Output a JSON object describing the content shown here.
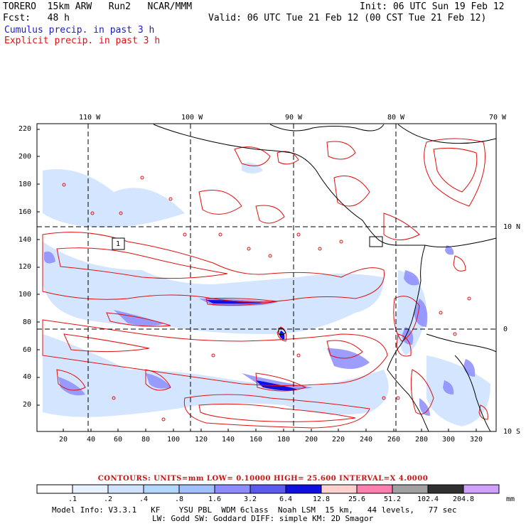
{
  "header": {
    "model": "TORERO  15km ARW   Run2   NCAR/MMM",
    "init": "Init: 06 UTC Sun 19 Feb 12",
    "fcst": "Fcst:   48 h",
    "valid": "Valid: 06 UTC Tue 21 Feb 12 (00 CST Tue 21 Feb 12)",
    "cumulus": "Cumulus precip. in past 3 h",
    "explicit": "Explicit precip. in past 3 h"
  },
  "colors": {
    "cumulus": "#1a1ad0",
    "explicit": "#e01010"
  },
  "axes": {
    "lon_labels": [
      "110 W",
      "100 W",
      "90 W",
      "80 W",
      "70 W"
    ],
    "lat_labels": [
      "10 N",
      "0",
      "10 S"
    ],
    "y_ticks": [
      "220",
      "200",
      "180",
      "160",
      "140",
      "120",
      "100",
      "80",
      "60",
      "40",
      "20"
    ],
    "x_ticks": [
      "20",
      "40",
      "60",
      "80",
      "100",
      "120",
      "140",
      "160",
      "180",
      "200",
      "220",
      "240",
      "260",
      "280",
      "300",
      "320"
    ]
  },
  "station_marker": "1",
  "contour_info": "CONTOURS:  UNITS=mm  LOW= 0.10000       HIGH=  25.600       INTERVAL=X  4.0000",
  "legend": {
    "labels": [
      ".1",
      ".2",
      ".4",
      ".8",
      "1.6",
      "3.2",
      "6.4",
      "12.8",
      "25.6",
      "51.2",
      "102.4",
      "204.8"
    ],
    "unit": "mm",
    "colors": [
      "#ffffff",
      "#e6f0ff",
      "#cfe3ff",
      "#b3d6ff",
      "#9fbfff",
      "#8c8cff",
      "#5a5af0",
      "#1010e0",
      "#ffd0d0",
      "#ff80b0",
      "#a0a0a0",
      "#303030",
      "#d0a0ff"
    ]
  },
  "footer": {
    "line1": "Model Info: V3.3.1   KF    YSU PBL  WDM 6class  Noah LSM  15 km,   44 levels,   77 sec",
    "line2": "LW: Godd SW: Goddard DIFF: simple KM: 2D Smagor"
  }
}
